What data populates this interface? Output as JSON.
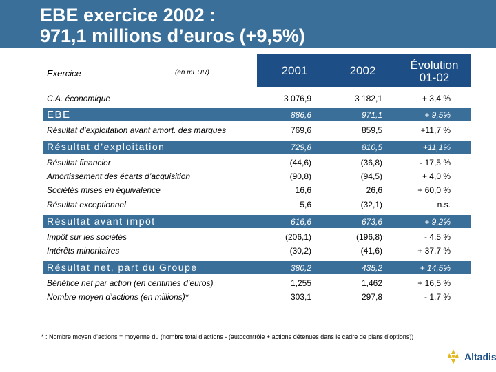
{
  "title": {
    "line1": "EBE exercice 2002 :",
    "line2": "971,1 millions d’euros (+9,5%)"
  },
  "table_header": {
    "exercise_label": "Exercice",
    "unit_label": "(en mEUR)",
    "col_2001": "2001",
    "col_2002": "2002",
    "col_evolution_line1": "Évolution",
    "col_evolution_line2": "01-02"
  },
  "rows": {
    "ca": {
      "label": "C.A. économique",
      "v2001": "3 076,9",
      "v2002": "3 182,1",
      "evol": "+ 3,4 %"
    },
    "ebe": {
      "label": "EBE",
      "v2001": "886,6",
      "v2002": "971,1",
      "evol": "+ 9,5%"
    },
    "resultat_expl_avant": {
      "label": "Résultat d’exploitation avant amort. des marques",
      "v2001": "769,6",
      "v2002": "859,5",
      "evol": "+11,7 %"
    },
    "resultat_expl": {
      "label": "Résultat d’exploitation",
      "v2001": "729,8",
      "v2002": "810,5",
      "evol": "+11,1%"
    },
    "resultat_fin": {
      "label": "Résultat financier",
      "v2001": "(44,6)",
      "v2002": "(36,8)",
      "evol": "- 17,5 %"
    },
    "amortissement": {
      "label": "Amortissement des écarts d’acquisition",
      "v2001": "(90,8)",
      "v2002": "(94,5)",
      "evol": "+ 4,0 %"
    },
    "societes_mee": {
      "label": "Sociétés mises en équivalence",
      "v2001": "16,6",
      "v2002": "26,6",
      "evol": "+ 60,0 %"
    },
    "resultat_except": {
      "label": "Résultat exceptionnel",
      "v2001": "5,6",
      "v2002": "(32,1)",
      "evol": "n.s."
    },
    "resultat_avant_impot": {
      "label": "Résultat avant impôt",
      "v2001": "616,6",
      "v2002": "673,6",
      "evol": "+ 9,2%"
    },
    "impot": {
      "label": "Impôt sur les sociétés",
      "v2001": "(206,1)",
      "v2002": "(196,8)",
      "evol": "- 4,5 %"
    },
    "minoritaires": {
      "label": "Intérêts minoritaires",
      "v2001": "(30,2)",
      "v2002": "(41,6)",
      "evol": "+ 37,7 %"
    },
    "resultat_net": {
      "label": "Résultat net, part du Groupe",
      "v2001": "380,2",
      "v2002": "435,2",
      "evol": "+ 14,5%"
    },
    "bpa": {
      "label": "Bénéfice net par action (en centimes d’euros)",
      "v2001": "1,255",
      "v2002": "1,462",
      "evol": "+ 16,5 %"
    },
    "nb_actions": {
      "label": "Nombre moyen d’actions (en millions)*",
      "v2001": "303,1",
      "v2002": "297,8",
      "evol": "- 1,7 %"
    }
  },
  "footnote": "* : Nombre moyen d’actions = moyenne du (nombre total d’actions - (autocontrôle + actions détenues dans le cadre de plans d’options))",
  "logo": {
    "text": "Altadis"
  },
  "colors": {
    "header": "#3a6f9a",
    "column_head": "#1d4f86",
    "band": "#3a6f9a",
    "logo_gold": "#e3b81f"
  }
}
